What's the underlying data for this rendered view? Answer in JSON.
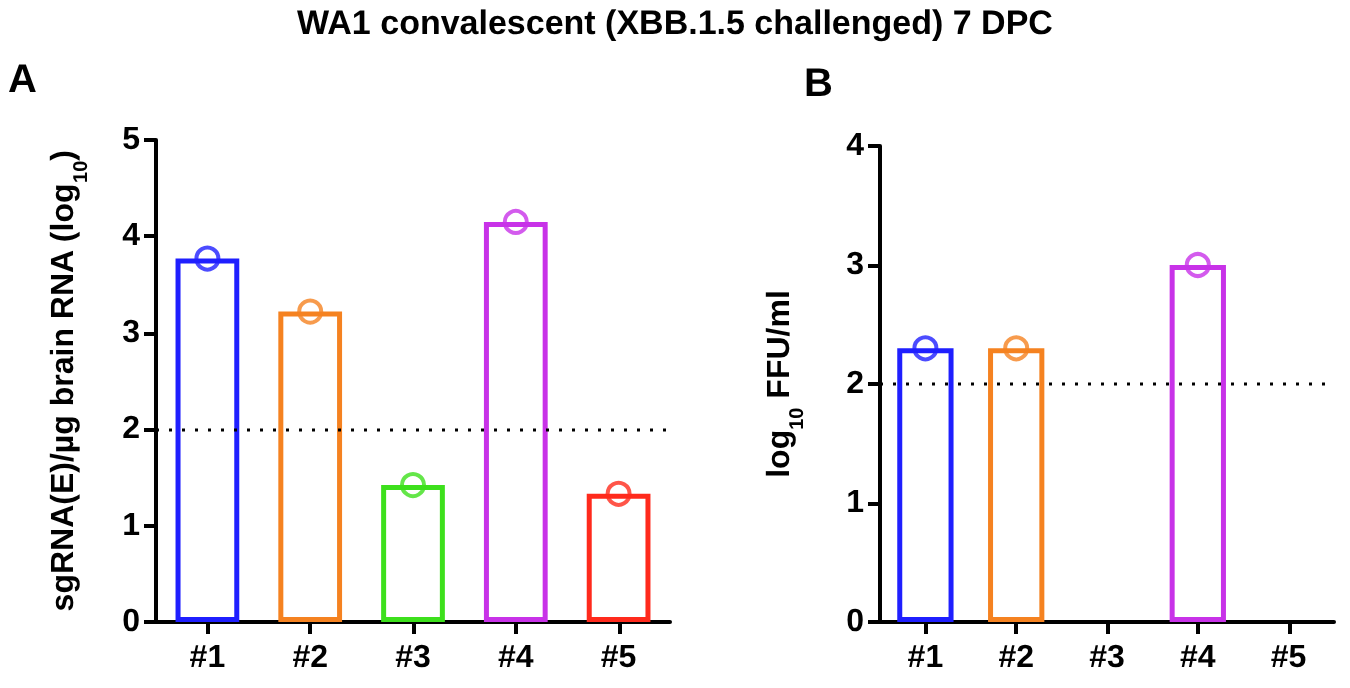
{
  "chart_data": [
    {
      "type": "bar",
      "title": "WA1 convalescent (XBB.1.5 challenged) 7 DPC",
      "ylabel": "sgRNA(E)/µg brain RNA (log$_{10}$)",
      "annotations": [
        "A"
      ],
      "categories": [
        "#1",
        "#2",
        "#3",
        "#4",
        "#5"
      ],
      "series": [
        {
          "colors": [
            "#1f1fff",
            "#f58220",
            "#3de01c",
            "#c832e8",
            "#ff2a1c"
          ],
          "values": [
            3.77,
            3.22,
            1.42,
            4.15,
            1.33
          ]
        },
        {
          "type": "scatter",
          "x": [
            "#1",
            "#2",
            "#3",
            "#4",
            "#5"
          ],
          "colors": [
            "#1f1fff",
            "#f58220",
            "#3de01c",
            "#c832e8",
            "#ff2a1c"
          ],
          "values": [
            3.77,
            3.22,
            1.42,
            4.15,
            1.33
          ]
        }
      ],
      "ylim": [
        0,
        5
      ],
      "yticks": [
        0,
        1,
        2,
        3,
        4,
        5
      ],
      "ref_lines": [
        {
          "axis": "y",
          "value": 2,
          "color": "#000000",
          "line_style": "dotted"
        }
      ],
      "marker": "circle",
      "grid": false
    },
    {
      "type": "bar",
      "ylabel": "log$_{10}$ FFU/ml",
      "annotations": [
        "B"
      ],
      "categories": [
        "#1",
        "#2",
        "#3",
        "#4",
        "#5"
      ],
      "series": [
        {
          "colors": [
            "#1f1fff",
            "#f58220",
            "#3de01c",
            "#c832e8",
            "#ff2a1c"
          ],
          "values": [
            2.3,
            2.3,
            null,
            3.0,
            null
          ]
        },
        {
          "type": "scatter",
          "x": [
            "#1",
            "#2",
            "#3",
            "#4",
            "#5"
          ],
          "colors": [
            "#1f1fff",
            "#f58220",
            "#3de01c",
            "#c832e8",
            "#ff2a1c"
          ],
          "values": [
            2.3,
            2.3,
            null,
            3.0,
            null
          ]
        }
      ],
      "ylim": [
        0,
        4
      ],
      "yticks": [
        0,
        1,
        2,
        3,
        4
      ],
      "ref_lines": [
        {
          "axis": "y",
          "value": 2,
          "color": "#000000",
          "line_style": "dotted"
        }
      ],
      "marker": "circle",
      "grid": false
    }
  ]
}
